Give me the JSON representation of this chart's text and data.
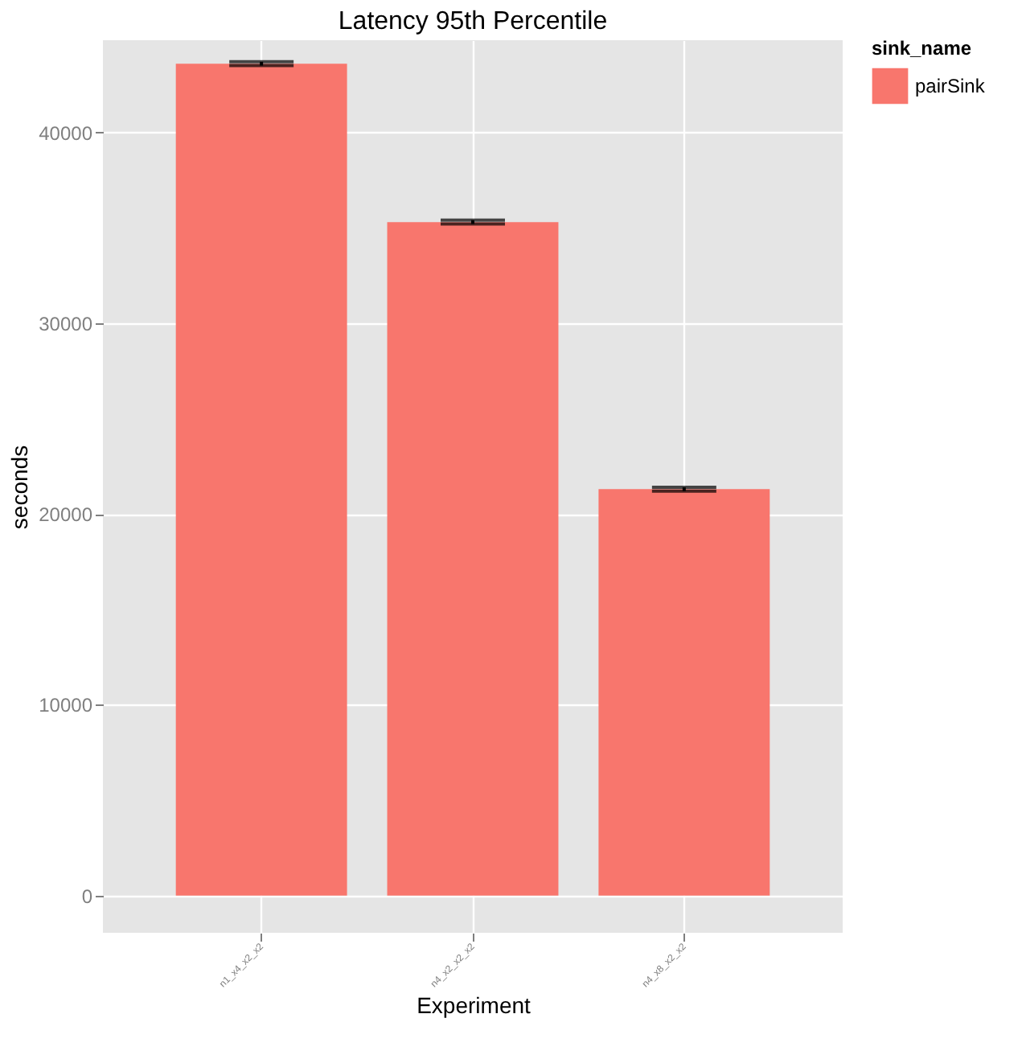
{
  "chart_data": {
    "type": "bar",
    "title": "Latency 95th Percentile",
    "xlabel": "Experiment",
    "ylabel": "seconds",
    "legend_title": "sink_name",
    "categories": [
      "n1_x4_x2_x2",
      "n4_x2_x2_x2",
      "n4_x8_x2_x2"
    ],
    "series": [
      {
        "name": "pairSink",
        "color": "#f8766d",
        "values": [
          43600,
          35300,
          21300
        ],
        "errors": [
          100,
          100,
          100
        ]
      }
    ],
    "ylim": [
      -1950,
      44830
    ],
    "yticks": [
      0,
      10000,
      20000,
      30000,
      40000
    ],
    "grid": true,
    "legend": "right"
  }
}
